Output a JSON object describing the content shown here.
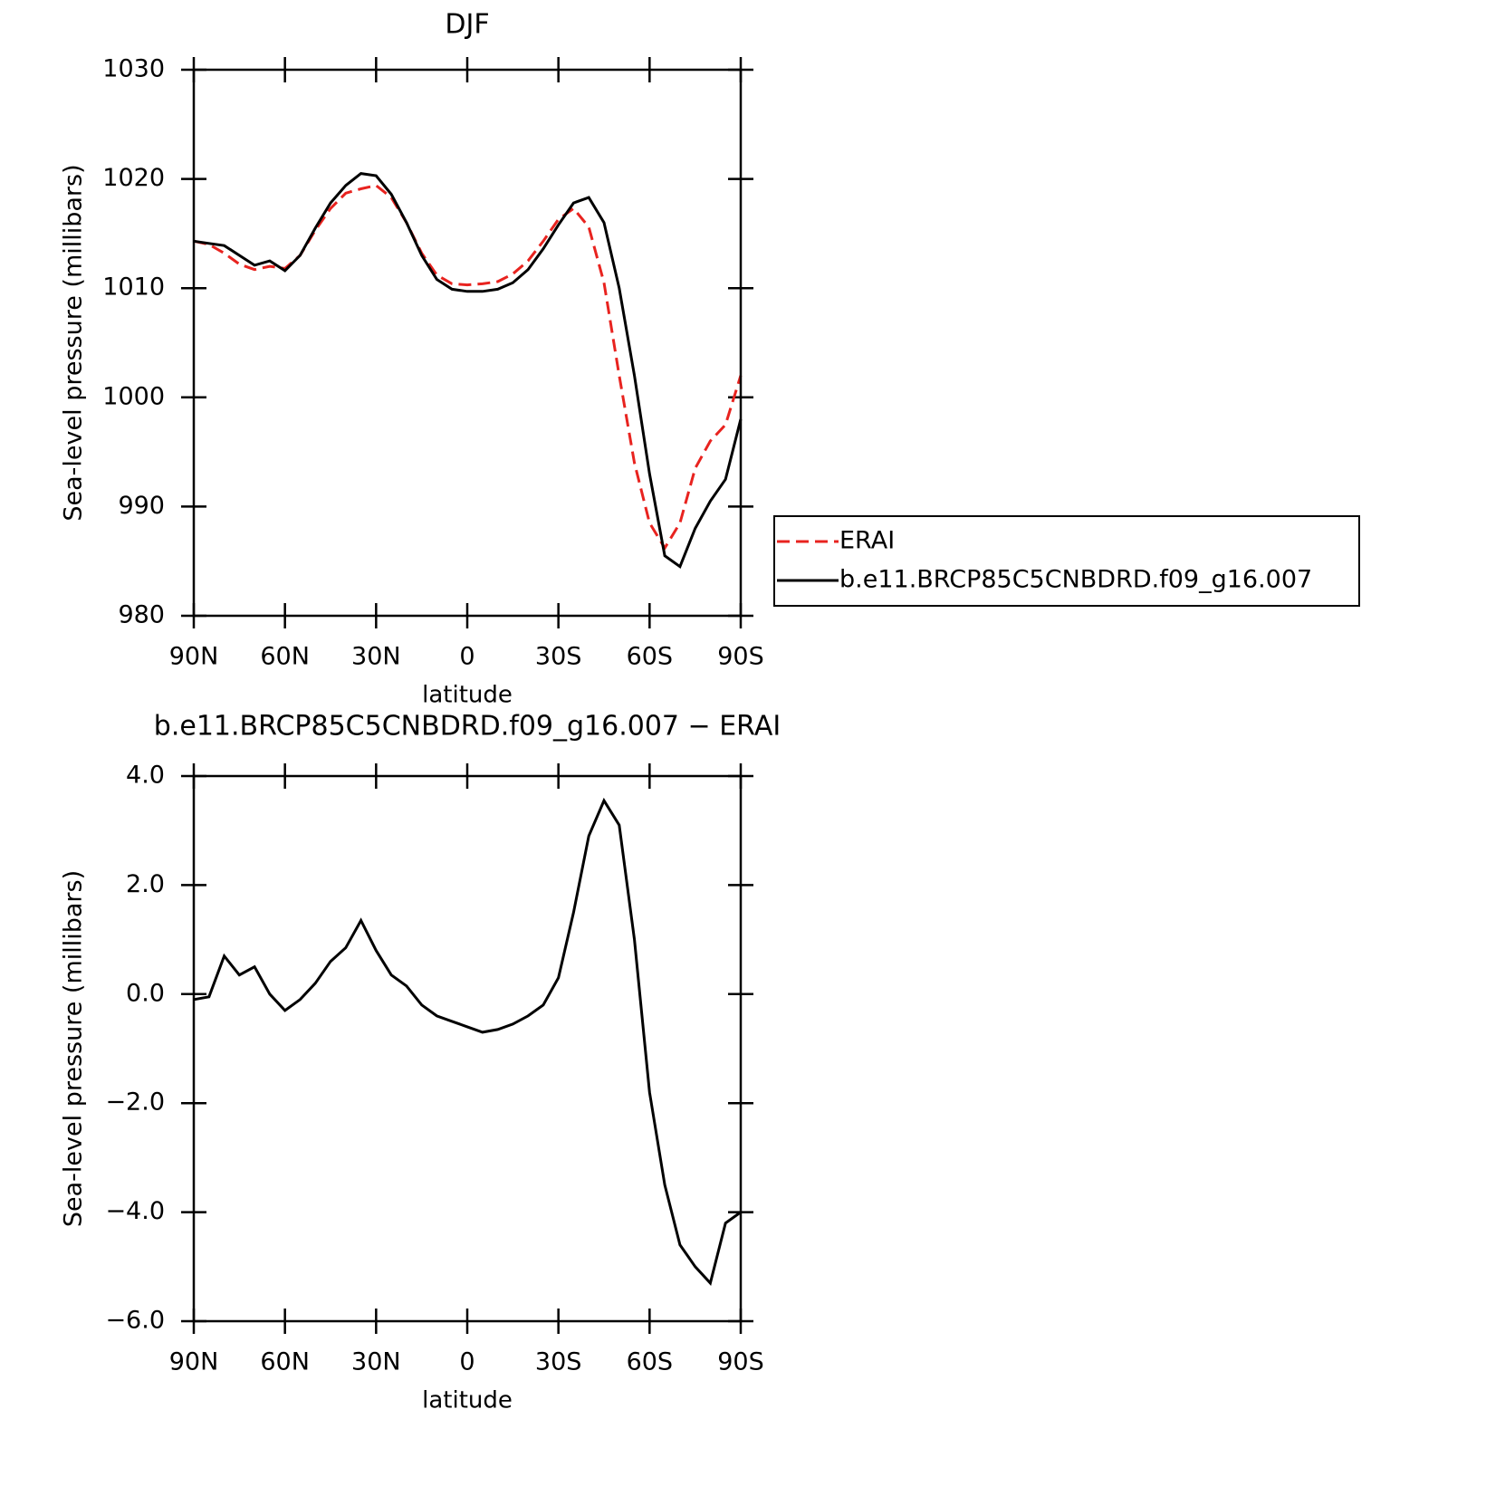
{
  "chart_data": [
    {
      "type": "line",
      "title": "DJF",
      "xlabel": "latitude",
      "ylabel": "Sea-level pressure (millibars)",
      "x": [
        90,
        85,
        80,
        75,
        70,
        65,
        60,
        55,
        50,
        45,
        40,
        35,
        30,
        25,
        20,
        15,
        10,
        5,
        0,
        -5,
        -10,
        -15,
        -20,
        -25,
        -30,
        -35,
        -40,
        -45,
        -50,
        -55,
        -60,
        -65,
        -70,
        -75,
        -80,
        -85,
        -90
      ],
      "series": [
        {
          "name": "ERAI",
          "color": "#e8231f",
          "dash": true,
          "values": [
            1014.3,
            1014,
            1013.2,
            1012.2,
            1011.7,
            1012,
            1011.8,
            1013,
            1015.3,
            1017.3,
            1018.7,
            1019.1,
            1019.4,
            1018.3,
            1016,
            1013.2,
            1011.2,
            1010.4,
            1010.3,
            1010.4,
            1010.6,
            1011.3,
            1012.5,
            1014.3,
            1016.3,
            1017.3,
            1015.6,
            1010.5,
            1002,
            994,
            988.5,
            986.2,
            988.5,
            993.5,
            996,
            997.5,
            1002
          ]
        },
        {
          "name": "b.e11.BRCP85C5CNBDRD.f09_g16.007",
          "color": "#000000",
          "dash": false,
          "values": [
            1014.3,
            1014.1,
            1013.9,
            1013,
            1012.1,
            1012.5,
            1011.6,
            1013,
            1015.5,
            1017.8,
            1019.4,
            1020.5,
            1020.3,
            1018.6,
            1016,
            1013,
            1010.8,
            1009.9,
            1009.7,
            1009.7,
            1009.9,
            1010.5,
            1011.7,
            1013.6,
            1015.8,
            1017.8,
            1018.3,
            1016,
            1010,
            1002,
            993,
            985.5,
            984.5,
            988,
            990.5,
            992.5,
            998
          ]
        }
      ],
      "xlim": [
        90,
        -90
      ],
      "xticks": [
        {
          "value": 90,
          "label": "90N"
        },
        {
          "value": 60,
          "label": "60N"
        },
        {
          "value": 30,
          "label": "30N"
        },
        0,
        {
          "value": -30,
          "label": "30S"
        },
        {
          "value": -60,
          "label": "60S"
        },
        {
          "value": -90,
          "label": "90S"
        }
      ],
      "ylim": [
        980,
        1030
      ],
      "yticks": [
        980,
        990,
        1000,
        1010,
        1020,
        1030
      ],
      "legend": "right"
    },
    {
      "type": "line",
      "title": "b.e11.BRCP85C5CNBDRD.f09_g16.007 − ERAI",
      "xlabel": "latitude",
      "ylabel": "Sea-level pressure (millibars)",
      "x": [
        90,
        85,
        80,
        75,
        70,
        65,
        60,
        55,
        50,
        45,
        40,
        35,
        30,
        25,
        20,
        15,
        10,
        5,
        0,
        -5,
        -10,
        -15,
        -20,
        -25,
        -30,
        -35,
        -40,
        -45,
        -50,
        -55,
        -60,
        -65,
        -70,
        -75,
        -80,
        -85,
        -90
      ],
      "series": [
        {
          "color": "#000000",
          "dash": false,
          "values": [
            -0.1,
            -0.05,
            0.7,
            0.35,
            0.5,
            0,
            -0.3,
            -0.1,
            0.2,
            0.6,
            0.85,
            1.35,
            0.8,
            0.35,
            0.15,
            -0.2,
            -0.4,
            -0.5,
            -0.6,
            -0.7,
            -0.65,
            -0.55,
            -0.4,
            -0.2,
            0.3,
            1.5,
            2.9,
            3.55,
            3.1,
            1,
            -1.8,
            -3.5,
            -4.6,
            -5,
            -5.3,
            -4.2,
            -4
          ]
        }
      ],
      "xlim": [
        90,
        -90
      ],
      "xticks": [
        {
          "value": 90,
          "label": "90N"
        },
        {
          "value": 60,
          "label": "60N"
        },
        {
          "value": 30,
          "label": "30N"
        },
        0,
        {
          "value": -30,
          "label": "30S"
        },
        {
          "value": -60,
          "label": "60S"
        },
        {
          "value": -90,
          "label": "90S"
        }
      ],
      "ylim": [
        -6,
        4
      ],
      "yticks": [
        {
          "value": -6,
          "label": "−6.0"
        },
        {
          "value": -4,
          "label": "−4.0"
        },
        {
          "value": -2,
          "label": "−2.0"
        },
        {
          "value": 0,
          "label": "0.0"
        },
        {
          "value": 2,
          "label": "2.0"
        },
        {
          "value": 4,
          "label": "4.0"
        }
      ]
    }
  ]
}
